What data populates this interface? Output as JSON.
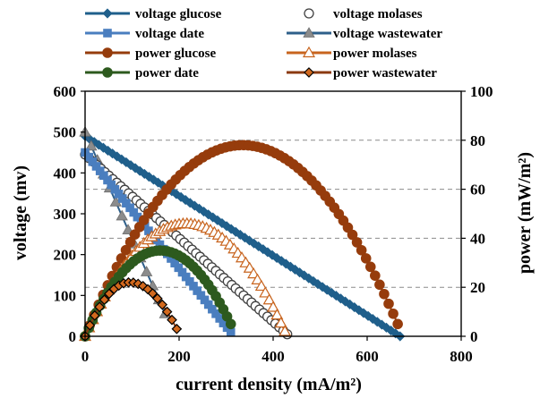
{
  "chart_data": {
    "type": "line",
    "xlabel": "current density (mA/m²)",
    "ylabel_left": "voltage (mv)",
    "ylabel_right": "power (mW/m²)",
    "xlim": [
      0,
      800
    ],
    "ylim_left": [
      0,
      600
    ],
    "ylim_right": [
      0,
      100
    ],
    "xticks": [
      "0",
      "200",
      "400",
      "600",
      "800"
    ],
    "yticks_left": [
      "0",
      "100",
      "200",
      "300",
      "400",
      "500",
      "600"
    ],
    "yticks_right": [
      "0",
      "20",
      "40",
      "60",
      "80",
      "100"
    ],
    "grid": "horizontal dashed at right-axis 20, 40, 60, 80",
    "legend_position": "top, two columns",
    "series": [
      {
        "name": "voltage glucose",
        "axis": "left",
        "color": "#1f5f8b",
        "marker": "diamond-filled",
        "line": true,
        "x_start": 0,
        "x_end": 670,
        "y_start": 490,
        "y_end": 0,
        "n_points": 70
      },
      {
        "name": "voltage molases",
        "axis": "left",
        "color": "#404040",
        "marker": "circle-open",
        "line": false,
        "x_start": 0,
        "x_end": 430,
        "y_start": 445,
        "y_end": 5,
        "n_points": 52
      },
      {
        "name": "voltage date",
        "axis": "left",
        "color": "#4a7ebf",
        "marker": "square-filled",
        "line": true,
        "x_start": 0,
        "x_end": 310,
        "y_start": 450,
        "y_end": 10,
        "n_points": 40
      },
      {
        "name": "voltage wastewater",
        "axis": "left",
        "color": "#2e5f8a",
        "marker": "triangle-gray",
        "line": true,
        "x_start": 0,
        "x_end": 170,
        "y_start": 500,
        "y_end": 55,
        "n_points": 14
      },
      {
        "name": "power glucose",
        "axis": "right",
        "color": "#963c0c",
        "marker": "circle-filled",
        "line": true,
        "x_start": 0,
        "x_end": 665,
        "peak_x": 335,
        "peak_y": 78,
        "end_y": 5,
        "n_points": 70
      },
      {
        "name": "power molases",
        "axis": "right",
        "color": "#c8641e",
        "marker": "triangle-open",
        "line": true,
        "x_start": 0,
        "x_end": 425,
        "peak_x": 215,
        "peak_y": 46,
        "end_y": 2,
        "n_points": 52
      },
      {
        "name": "power date",
        "axis": "right",
        "color": "#2d5a1e",
        "marker": "circle-filled",
        "line": true,
        "x_start": 0,
        "x_end": 310,
        "peak_x": 160,
        "peak_y": 35,
        "end_y": 5,
        "n_points": 40
      },
      {
        "name": "power wastewater",
        "axis": "right",
        "color": "#8b3a10",
        "marker": "diamond-orange",
        "line": true,
        "x_start": 0,
        "x_end": 195,
        "peak_x": 95,
        "peak_y": 22,
        "end_y": 3,
        "n_points": 20
      }
    ]
  }
}
